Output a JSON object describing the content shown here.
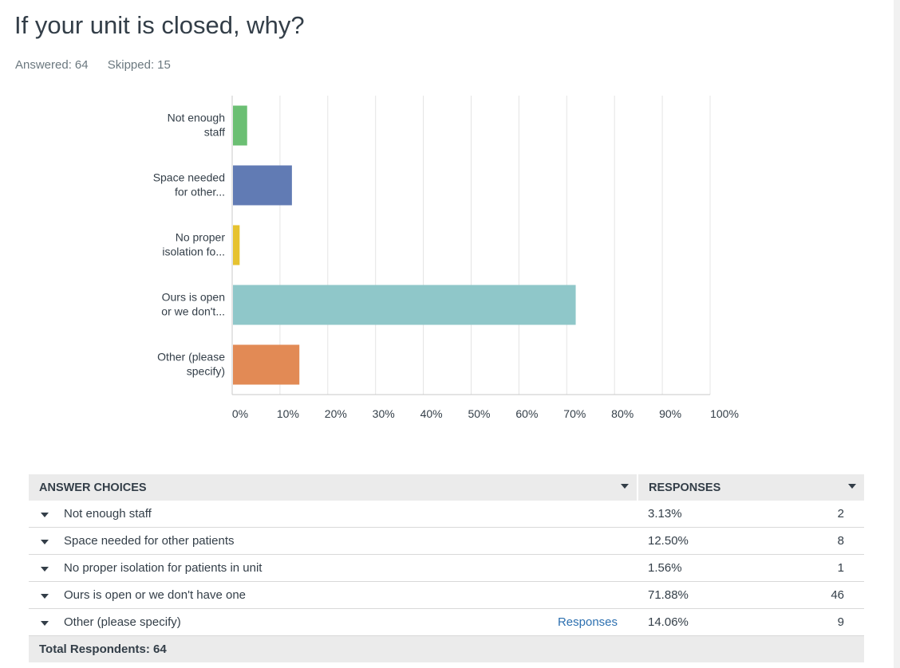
{
  "question": {
    "title": "If your unit is closed, why?",
    "answered_label": "Answered:",
    "answered": "64",
    "skipped_label": "Skipped:",
    "skipped": "15"
  },
  "chart_data": {
    "type": "bar",
    "orientation": "horizontal",
    "categories": [
      [
        "Not enough",
        "staff"
      ],
      [
        "Space needed",
        "for other..."
      ],
      [
        "No proper",
        "isolation fo..."
      ],
      [
        "Ours is open",
        "or we don't..."
      ],
      [
        "Other (please",
        "specify)"
      ]
    ],
    "values": [
      3.13,
      12.5,
      1.56,
      71.88,
      14.06
    ],
    "colors": [
      "#6bbf73",
      "#617bb4",
      "#e6c230",
      "#8fc7c9",
      "#e28a55"
    ],
    "xlim": [
      0,
      100
    ],
    "xticks": [
      "0%",
      "10%",
      "20%",
      "30%",
      "40%",
      "50%",
      "60%",
      "70%",
      "80%",
      "90%",
      "100%"
    ],
    "grid": true
  },
  "table": {
    "header_choices": "ANSWER CHOICES",
    "header_responses": "RESPONSES",
    "rows": [
      {
        "choice": "Not enough staff",
        "percent": "3.13%",
        "count": "2",
        "link": ""
      },
      {
        "choice": "Space needed for other patients",
        "percent": "12.50%",
        "count": "8",
        "link": ""
      },
      {
        "choice": "No proper isolation for patients in unit",
        "percent": "1.56%",
        "count": "1",
        "link": ""
      },
      {
        "choice": "Ours is open or we don't have one",
        "percent": "71.88%",
        "count": "46",
        "link": ""
      },
      {
        "choice": "Other (please specify)",
        "percent": "14.06%",
        "count": "9",
        "link": "Responses"
      }
    ],
    "total_label": "Total Respondents: 64"
  }
}
